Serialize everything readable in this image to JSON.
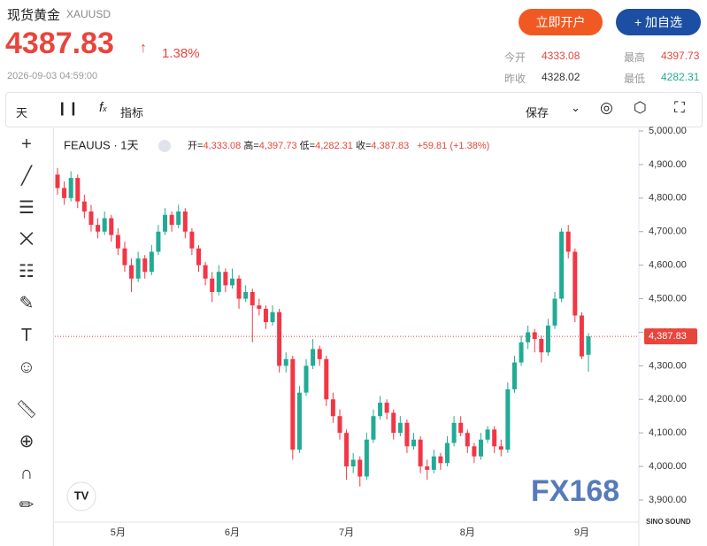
{
  "header": {
    "title": "现货黄金",
    "symbol": "XAUUSD",
    "price": "4387.83",
    "change": "1.38%",
    "time": "2026-09-03 04:59:00",
    "buttons": [
      "立即开户",
      "+ 加自选"
    ],
    "stats": [
      {
        "label": "今开",
        "value": "4333.08"
      },
      {
        "label": "最高",
        "value": "4397.73"
      },
      {
        "label": "昨收",
        "value": "4328.02"
      },
      {
        "label": "最低",
        "value": "4282.31"
      }
    ]
  },
  "toolbar": {
    "interval": "天",
    "indicators": "指标",
    "save": "保存"
  },
  "legend": {
    "name": "FEAUUS · 1天",
    "open_label": "开=",
    "open": "4,333.08",
    "high_label": "高=",
    "high": "4,397.73",
    "low_label": "低=",
    "low": "4,282.31",
    "close_label": "收=",
    "close": "4,387.83",
    "change": "+59.81 (+1.38%)"
  },
  "watermark": {
    "logo": "FX168",
    "brand": "SINO SOUND"
  },
  "chart_data": {
    "type": "candlestick",
    "up_color": "#22ab94",
    "down_color": "#f23645",
    "categories": [
      null,
      null,
      null,
      null,
      null,
      null,
      null,
      null,
      null,
      "5月",
      null,
      null,
      null,
      null,
      null,
      null,
      null,
      null,
      null,
      null,
      null,
      null,
      null,
      null,
      null,
      null,
      "6月",
      null,
      null,
      null,
      null,
      null,
      null,
      null,
      null,
      null,
      null,
      null,
      null,
      null,
      null,
      null,
      null,
      "7月",
      null,
      null,
      null,
      null,
      null,
      null,
      null,
      null,
      null,
      null,
      null,
      null,
      null,
      null,
      null,
      null,
      null,
      "8月",
      null,
      null,
      null,
      null,
      null,
      null,
      null,
      null,
      null,
      null,
      null,
      null,
      null,
      null,
      null,
      null,
      "9月",
      null
    ],
    "open": [
      4870,
      4830,
      4800,
      4860,
      4790,
      4760,
      4720,
      4700,
      4740,
      4690,
      4650,
      4600,
      4560,
      4620,
      4580,
      4640,
      4700,
      4750,
      4720,
      4760,
      4700,
      4650,
      4600,
      4560,
      4520,
      4580,
      4540,
      4560,
      4500,
      4520,
      4480,
      4470,
      4430,
      4460,
      4300,
      4320,
      4050,
      4220,
      4300,
      4350,
      4320,
      4200,
      4150,
      4100,
      4000,
      4020,
      3970,
      4080,
      4150,
      4190,
      4160,
      4100,
      4130,
      4060,
      4080,
      4000,
      3990,
      4030,
      4010,
      4070,
      4130,
      4100,
      4060,
      4030,
      4080,
      4110,
      4060,
      4050,
      4230,
      4310,
      4370,
      4400,
      4380,
      4340,
      4420,
      4500,
      4700,
      4640,
      4450,
      4333.08
    ],
    "high": [
      4890,
      4850,
      4880,
      4870,
      4810,
      4780,
      4740,
      4760,
      4750,
      4710,
      4670,
      4620,
      4640,
      4630,
      4660,
      4720,
      4770,
      4760,
      4780,
      4770,
      4710,
      4660,
      4610,
      4580,
      4600,
      4590,
      4590,
      4570,
      4540,
      4530,
      4500,
      4480,
      4480,
      4470,
      4340,
      4330,
      4240,
      4320,
      4380,
      4360,
      4330,
      4220,
      4170,
      4110,
      4040,
      4030,
      4100,
      4170,
      4210,
      4200,
      4170,
      4150,
      4140,
      4100,
      4090,
      4020,
      4050,
      4040,
      4090,
      4150,
      4150,
      4110,
      4070,
      4100,
      4120,
      4120,
      4080,
      4250,
      4330,
      4390,
      4420,
      4410,
      4390,
      4440,
      4520,
      4710,
      4720,
      4650,
      4460,
      4397.73
    ],
    "low": [
      4810,
      4780,
      4790,
      4770,
      4740,
      4700,
      4680,
      4690,
      4670,
      4630,
      4580,
      4520,
      4550,
      4560,
      4570,
      4630,
      4690,
      4700,
      4710,
      4680,
      4630,
      4580,
      4540,
      4490,
      4510,
      4520,
      4530,
      4470,
      4490,
      4370,
      4450,
      4410,
      4420,
      4280,
      4280,
      4020,
      4040,
      4210,
      4290,
      4300,
      4180,
      4130,
      4080,
      3960,
      3980,
      3940,
      3960,
      4070,
      4140,
      4140,
      4080,
      4090,
      4040,
      4050,
      3980,
      3960,
      3980,
      3990,
      4000,
      4060,
      4090,
      4040,
      4010,
      4020,
      4070,
      4040,
      4030,
      4040,
      4220,
      4300,
      4350,
      4340,
      4310,
      4330,
      4410,
      4490,
      4620,
      4430,
      4320,
      4282.31
    ],
    "close": [
      4830,
      4800,
      4860,
      4790,
      4760,
      4720,
      4700,
      4740,
      4690,
      4650,
      4600,
      4560,
      4620,
      4580,
      4640,
      4700,
      4750,
      4720,
      4760,
      4700,
      4650,
      4600,
      4560,
      4520,
      4580,
      4540,
      4560,
      4500,
      4520,
      4480,
      4470,
      4430,
      4460,
      4300,
      4320,
      4050,
      4220,
      4300,
      4350,
      4320,
      4200,
      4150,
      4100,
      4000,
      4020,
      3970,
      4080,
      4150,
      4190,
      4160,
      4100,
      4130,
      4060,
      4080,
      4000,
      3990,
      4030,
      4010,
      4070,
      4130,
      4100,
      4060,
      4030,
      4080,
      4110,
      4060,
      4050,
      4230,
      4310,
      4370,
      4400,
      4380,
      4340,
      4420,
      4500,
      4700,
      4640,
      4450,
      4328.02,
      4387.83
    ],
    "ylim": [
      3834,
      5008
    ],
    "yticks": [
      {
        "value": 3900,
        "label": "3,900.00"
      },
      {
        "value": 4000,
        "label": "4,000.00"
      },
      {
        "value": 4100,
        "label": "4,100.00"
      },
      {
        "value": 4200,
        "label": "4,200.00"
      },
      {
        "value": 4300,
        "label": "4,300.00"
      },
      {
        "value": 4400,
        "label": "4,400.00"
      },
      {
        "value": 4500,
        "label": "4,500.00"
      },
      {
        "value": 4600,
        "label": "4,600.00"
      },
      {
        "value": 4700,
        "label": "4,700.00"
      },
      {
        "value": 4800,
        "label": "4,800.00"
      },
      {
        "value": 4900,
        "label": "4,900.00"
      },
      {
        "value": 5000,
        "label": "5,000.00"
      }
    ],
    "last_price": {
      "value": 4387.83,
      "label": "4,387.83"
    },
    "grid": false
  }
}
